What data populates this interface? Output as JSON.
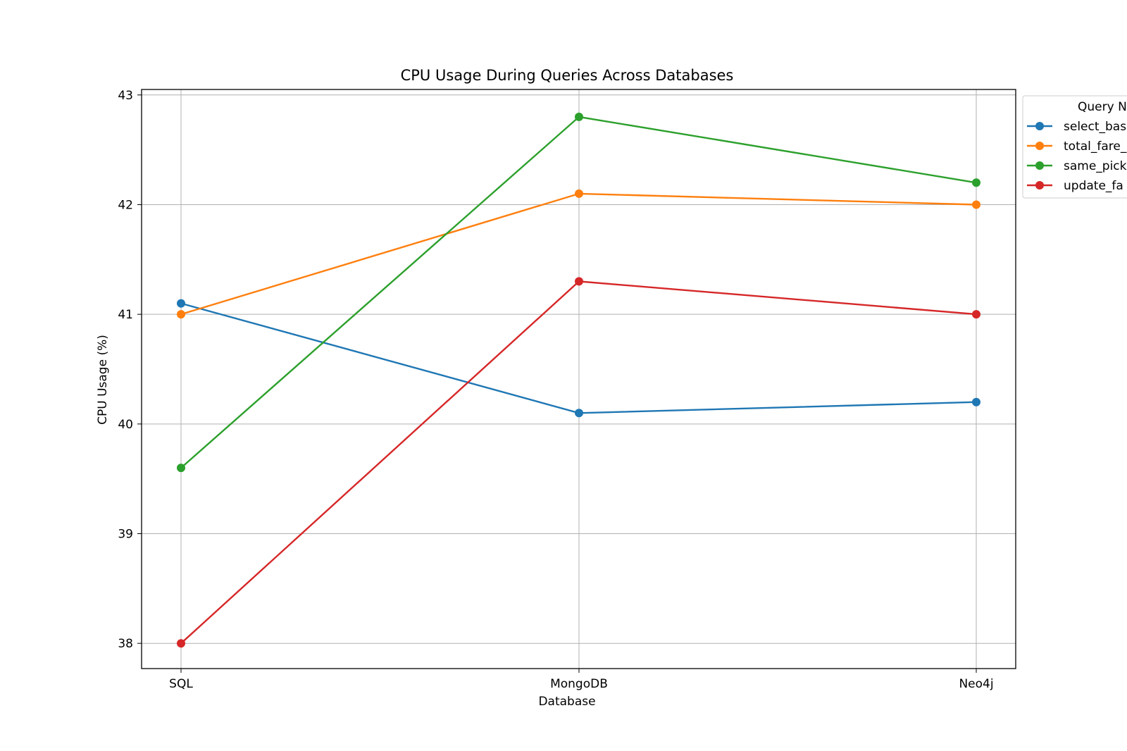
{
  "chart_data": {
    "type": "line",
    "title": "CPU Usage During Queries Across Databases",
    "xlabel": "Database",
    "ylabel": "CPU Usage (%)",
    "categories": [
      "SQL",
      "MongoDB",
      "Neo4j"
    ],
    "ylim": [
      37.77,
      43.05
    ],
    "yticks": [
      38,
      39,
      40,
      41,
      42,
      43
    ],
    "grid": true,
    "legend": {
      "title": "Query N",
      "placement": "outside-right-top",
      "entries": [
        "select_bas",
        "total_fare_",
        "same_pick",
        "update_fa"
      ]
    },
    "series": [
      {
        "name": "select_bas",
        "color": "#1f77b4",
        "values": [
          41.1,
          40.1,
          40.2
        ]
      },
      {
        "name": "total_fare_",
        "color": "#ff7f0e",
        "values": [
          41.0,
          42.1,
          42.0
        ]
      },
      {
        "name": "same_pick",
        "color": "#2ca02c",
        "values": [
          39.6,
          42.8,
          42.2
        ]
      },
      {
        "name": "update_fa",
        "color": "#d62728",
        "values": [
          38.0,
          41.3,
          41.0
        ]
      }
    ]
  }
}
